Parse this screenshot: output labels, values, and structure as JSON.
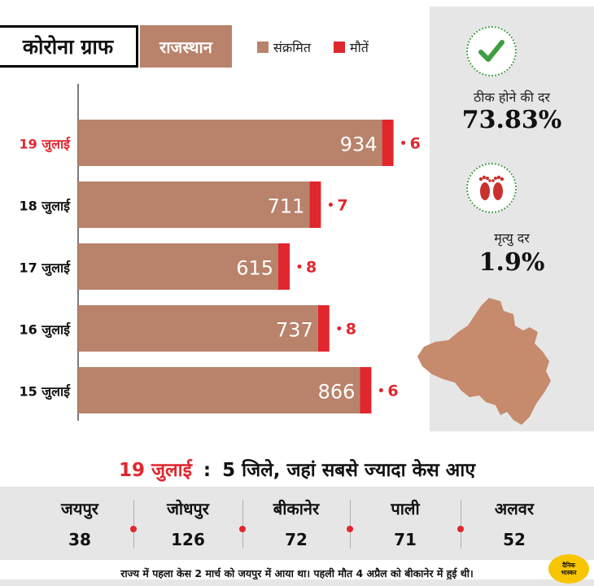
{
  "header": {
    "title": "कोरोना ग्राफ",
    "state": "राजस्थान"
  },
  "legend": [
    {
      "label": "संक्रमित",
      "color": "#b9826a"
    },
    {
      "label": "मौतें",
      "color": "#e0272e"
    }
  ],
  "chart_data": {
    "type": "bar",
    "orientation": "horizontal",
    "stacked": true,
    "categories": [
      "19 जुलाई",
      "18 जुलाई",
      "17 जुलाई",
      "16 जुलाई",
      "15 जुलाई"
    ],
    "series": [
      {
        "name": "संक्रमित",
        "color": "#b9826a",
        "values": [
          934,
          711,
          615,
          737,
          866
        ]
      },
      {
        "name": "मौतें",
        "color": "#e0272e",
        "values": [
          6,
          7,
          8,
          8,
          6
        ]
      }
    ],
    "highlight_category": "19 जुलाई",
    "highlight_color": "#e0272e",
    "xlim": [
      0,
      1000
    ],
    "title": "",
    "xlabel": "",
    "ylabel": ""
  },
  "rates": {
    "recovery": {
      "label": "ठीक होने की दर",
      "value": "73.83%",
      "icon": "checkmark-icon"
    },
    "mortality": {
      "label": "मृत्यु दर",
      "value": "1.9%",
      "icon": "feet-icon"
    }
  },
  "districts": {
    "date": "19 जुलाई",
    "separator": ":",
    "title": "5 जिले, जहां सबसे ज्यादा केस आए",
    "items": [
      {
        "name": "जयपुर",
        "count": "38"
      },
      {
        "name": "जोधपुर",
        "count": "126"
      },
      {
        "name": "बीकानेर",
        "count": "72"
      },
      {
        "name": "पाली",
        "count": "71"
      },
      {
        "name": "अलवर",
        "count": "52"
      }
    ]
  },
  "footnote": "राज्य में पहला केस 2 मार्च को जयपुर में आया था। पहली मौत 4 अप्रैल को बीकानेर में हुई थी।",
  "brand": {
    "line1": "दैनिक",
    "line2": "भास्कर"
  },
  "colors": {
    "infected": "#b9826a",
    "deaths": "#e0272e",
    "panel": "#e6e6e6",
    "map": "#c68a6c"
  }
}
